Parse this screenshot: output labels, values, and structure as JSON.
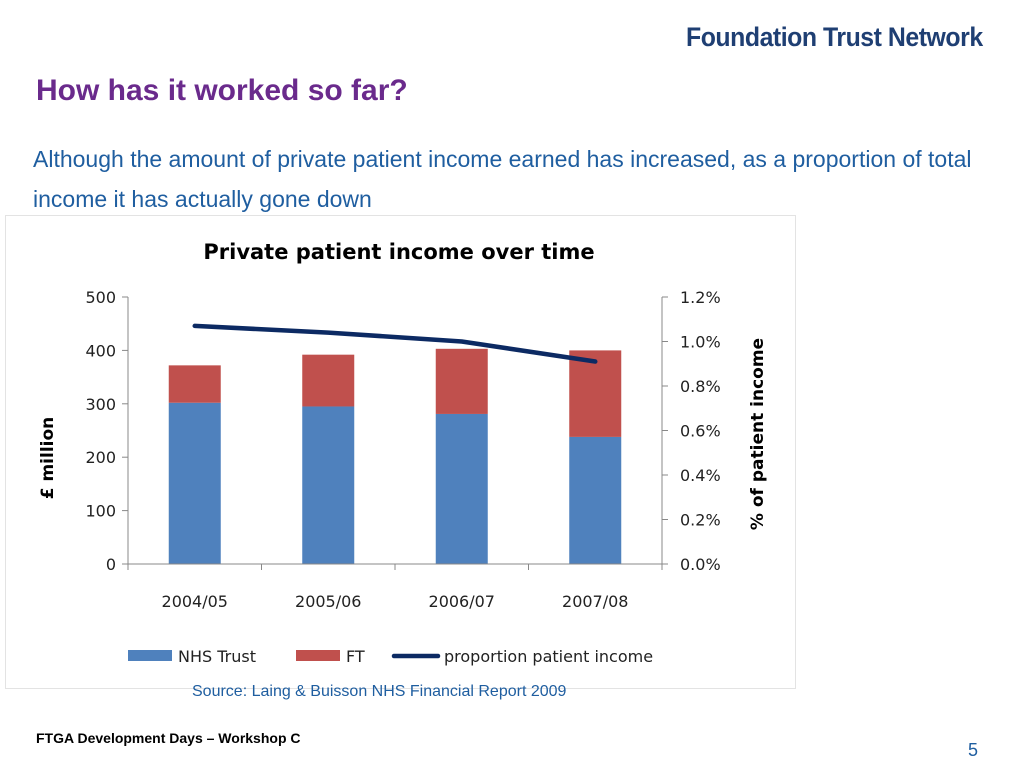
{
  "header": {
    "logo_text": "Foundation Trust Network",
    "title": "How has it worked so far?",
    "subtitle": "Although the amount of private patient income earned has increased, as a proportion of total income it has actually gone down"
  },
  "chart_data": {
    "type": "bar",
    "stacked": true,
    "title": "Private patient income over time",
    "categories": [
      "2004/05",
      "2005/06",
      "2006/07",
      "2007/08"
    ],
    "series": [
      {
        "name": "NHS Trust",
        "type": "bar",
        "color": "#4f81bd",
        "values": [
          302,
          295,
          281,
          238
        ]
      },
      {
        "name": "FT",
        "type": "bar",
        "color": "#c0504d",
        "values": [
          70,
          97,
          122,
          162
        ]
      },
      {
        "name": "proportion patient income",
        "type": "line",
        "axis": "right",
        "color": "#0c2a63",
        "values": [
          1.07,
          1.04,
          1.0,
          0.91
        ]
      }
    ],
    "ylabel": "£ million",
    "ylim": [
      0,
      500
    ],
    "yticks": [
      "0",
      "100",
      "200",
      "300",
      "400",
      "500"
    ],
    "y2label": "% of patient income",
    "y2lim": [
      0,
      1.2
    ],
    "y2ticks": [
      "0.0%",
      "0.2%",
      "0.4%",
      "0.6%",
      "0.8%",
      "1.0%",
      "1.2%"
    ],
    "grid": false,
    "legend": "bottom"
  },
  "footer": {
    "source": "Source: Laing & Buisson NHS Financial Report 2009",
    "event": "FTGA Development Days – Workshop C",
    "page_number": "5"
  }
}
